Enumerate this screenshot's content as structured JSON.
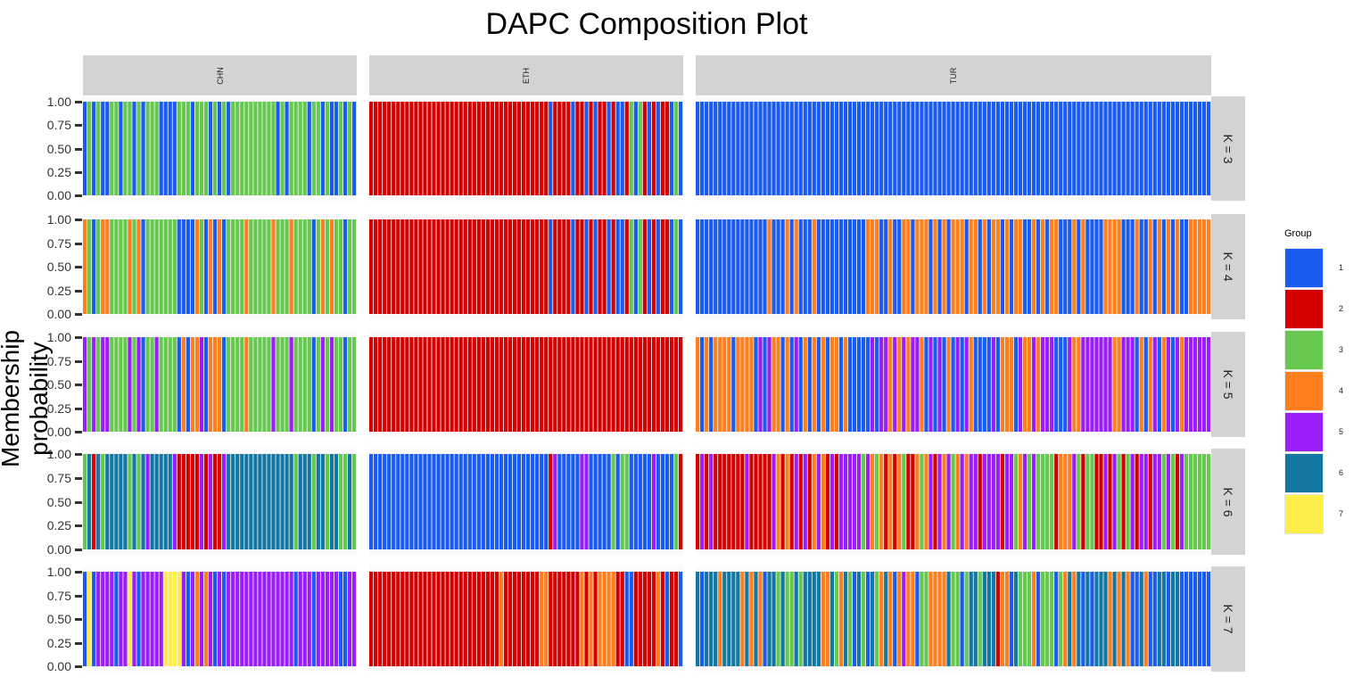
{
  "chart_data": {
    "type": "bar",
    "subtype": "stacked-membership (faceted)",
    "title": "DAPC Composition Plot",
    "xlabel": "",
    "ylabel": "Membership probability",
    "ylim": [
      0,
      1
    ],
    "yticks": [
      "0.00",
      "0.25",
      "0.50",
      "0.75",
      "1.00"
    ],
    "grid": false,
    "legend": {
      "title": "Group",
      "placement": "right",
      "entries": [
        {
          "label": "1",
          "color": "#1a5cf2"
        },
        {
          "label": "2",
          "color": "#d40000"
        },
        {
          "label": "3",
          "color": "#66c84f"
        },
        {
          "label": "4",
          "color": "#ff7f1e"
        },
        {
          "label": "5",
          "color": "#9a1dfa"
        },
        {
          "label": "6",
          "color": "#1277a3"
        },
        {
          "label": "7",
          "color": "#fdee4a"
        }
      ]
    },
    "populations": [
      "CHN",
      "ETH",
      "TUR"
    ],
    "facet_rows": [
      "K = 3",
      "K = 4",
      "K = 5",
      "K = 6",
      "K = 7"
    ],
    "note": "Each sample is a full-height bar (membership 1.00) colored by its assigned group; digits encode group per sample, left to right.",
    "assignments": {
      "K = 3": {
        "CHN": "1313113313313133311113331333131313333333333131333313313113131",
        "ETH": "2222222222222222222222222222222222222222122221221212212112313212122131",
        "TUR": "1111111111111111111111111111111111111111111111111111111111111111111111111111111111111111111111111111111111111111111"
      },
      "K = 4": {
        "CHN": "4313443333434133333331111431414133334333334333433331343433133",
        "ETH": "2222222222222222222222222222222222222222122221221212212112313212122131",
        "TUR": "1111111111111111411141411141111111111144411411441444141414441441414414144114141441114141111444411141141414141144444"
      },
      "K = 5": {
        "CHN": "5353553333535133533331414451444133334333335333533331353533133",
        "ETH": "2222222222222222222222222222222222222222222222222222222222222222222222",
        "TUR": "4141444414444151544141514141414414111115155454545541515141515411115144415445455511154455555554455514145145154555555"
      },
      "K = 6": {
        "CHN": "3626366666363656666652222252522566666666666666636663663663363",
        "ETH": "1111111111111111111111111111111111111111251111155111113133111115111132",
        "TUR": "2525222222252222254242525245425255555354342424322434525453454552555525534535333324445323322525323525525535325333333"
      },
      "K = 7": {
        "CHN": "1715555155751555557777515454515155555555555555515551555551155",
        "ETH": "2222222222222222222222222222242222222244222222242424444221122222421221",
        "TUR": "6166646666464641663633636666446346316316346414544133444463313663666244163334133313464616166646464116411661661111111"
      }
    }
  }
}
